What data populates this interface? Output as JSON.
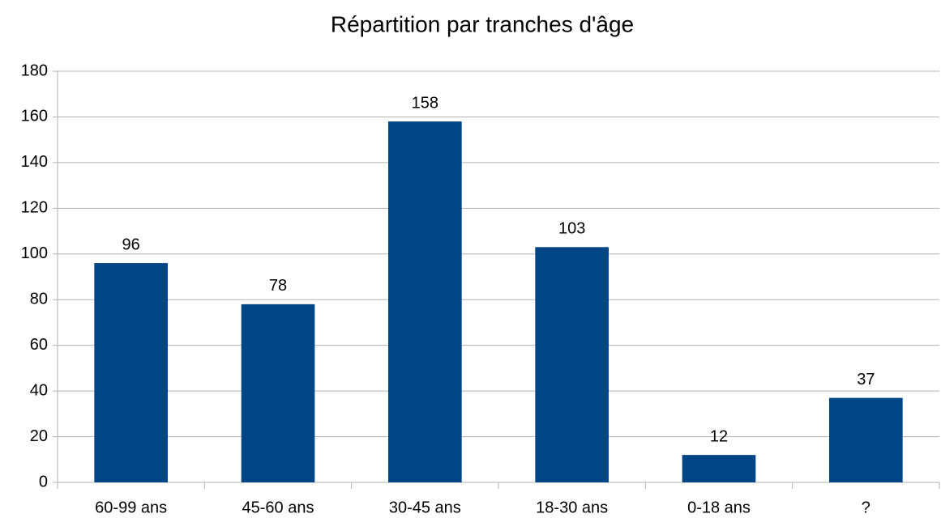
{
  "chart_data": {
    "type": "bar",
    "title": "Répartition par tranches d'âge",
    "categories": [
      "60-99 ans",
      "45-60 ans",
      "30-45 ans",
      "18-30 ans",
      "0-18 ans",
      "?"
    ],
    "values": [
      96,
      78,
      158,
      103,
      12,
      37
    ],
    "color": "#004586",
    "ylim": [
      0,
      180
    ],
    "yticks": [
      0,
      20,
      40,
      60,
      80,
      100,
      120,
      140,
      160,
      180
    ],
    "grid": true
  }
}
